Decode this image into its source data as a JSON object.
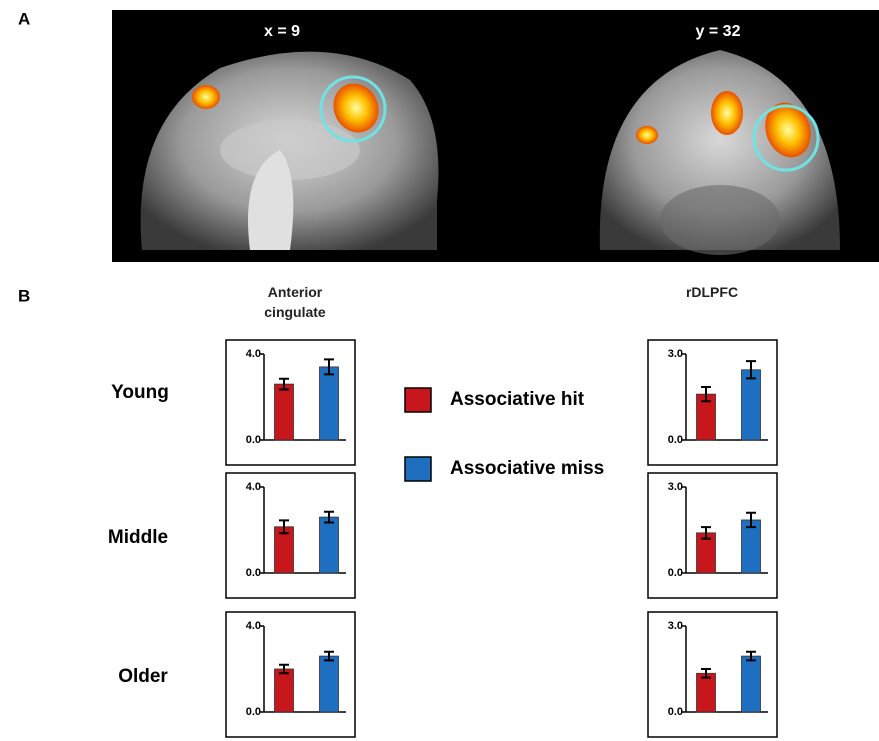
{
  "figure": {
    "panel_a": "A",
    "panel_b": "B",
    "left_slice": "x = 9",
    "right_slice": "y = 32",
    "column_headers": [
      "Anterior cingulate",
      "rDLPFC"
    ],
    "row_labels": [
      "Young",
      "Middle",
      "Older"
    ]
  },
  "chart_data": [
    {
      "type": "bar",
      "ylim": [
        0,
        4
      ],
      "yticks": [
        {
          "value": 0,
          "label": "0.0"
        },
        {
          "value": 4,
          "label": "4.0"
        }
      ],
      "series": [
        {
          "name": "Associative hit",
          "color": "#c8161d",
          "values": [
            2.6
          ],
          "errors": [
            0.25
          ]
        },
        {
          "name": "Associative miss",
          "color": "#1f6fc1",
          "values": [
            3.4
          ],
          "errors": [
            0.35
          ]
        }
      ]
    },
    {
      "type": "bar",
      "ylim": [
        0,
        4
      ],
      "yticks": [
        {
          "value": 0,
          "label": "0.0"
        },
        {
          "value": 4,
          "label": "4.0"
        }
      ],
      "series": [
        {
          "name": "Associative hit",
          "color": "#c8161d",
          "values": [
            2.15
          ],
          "errors": [
            0.3
          ]
        },
        {
          "name": "Associative miss",
          "color": "#1f6fc1",
          "values": [
            2.6
          ],
          "errors": [
            0.25
          ]
        }
      ]
    },
    {
      "type": "bar",
      "ylim": [
        0,
        4
      ],
      "yticks": [
        {
          "value": 0,
          "label": "0.0"
        },
        {
          "value": 4,
          "label": "4.0"
        }
      ],
      "series": [
        {
          "name": "Associative hit",
          "color": "#c8161d",
          "values": [
            2.0
          ],
          "errors": [
            0.2
          ]
        },
        {
          "name": "Associative miss",
          "color": "#1f6fc1",
          "values": [
            2.6
          ],
          "errors": [
            0.2
          ]
        }
      ]
    },
    {
      "type": "bar",
      "ylim": [
        0,
        3
      ],
      "yticks": [
        {
          "value": 0,
          "label": "0.0"
        },
        {
          "value": 3,
          "label": "3.0"
        }
      ],
      "series": [
        {
          "name": "Associative hit",
          "color": "#c8161d",
          "values": [
            1.6
          ],
          "errors": [
            0.25
          ]
        },
        {
          "name": "Associative miss",
          "color": "#1f6fc1",
          "values": [
            2.45
          ],
          "errors": [
            0.3
          ]
        }
      ]
    },
    {
      "type": "bar",
      "ylim": [
        0,
        3
      ],
      "yticks": [
        {
          "value": 0,
          "label": "0.0"
        },
        {
          "value": 3,
          "label": "3.0"
        }
      ],
      "series": [
        {
          "name": "Associative hit",
          "color": "#c8161d",
          "values": [
            1.4
          ],
          "errors": [
            0.2
          ]
        },
        {
          "name": "Associative miss",
          "color": "#1f6fc1",
          "values": [
            1.85
          ],
          "errors": [
            0.25
          ]
        }
      ]
    },
    {
      "type": "bar",
      "ylim": [
        0,
        3
      ],
      "yticks": [
        {
          "value": 0,
          "label": "0.0"
        },
        {
          "value": 3,
          "label": "3.0"
        }
      ],
      "series": [
        {
          "name": "Associative hit",
          "color": "#c8161d",
          "values": [
            1.35
          ],
          "errors": [
            0.15
          ]
        },
        {
          "name": "Associative miss",
          "color": "#1f6fc1",
          "values": [
            1.95
          ],
          "errors": [
            0.15
          ]
        }
      ]
    }
  ]
}
